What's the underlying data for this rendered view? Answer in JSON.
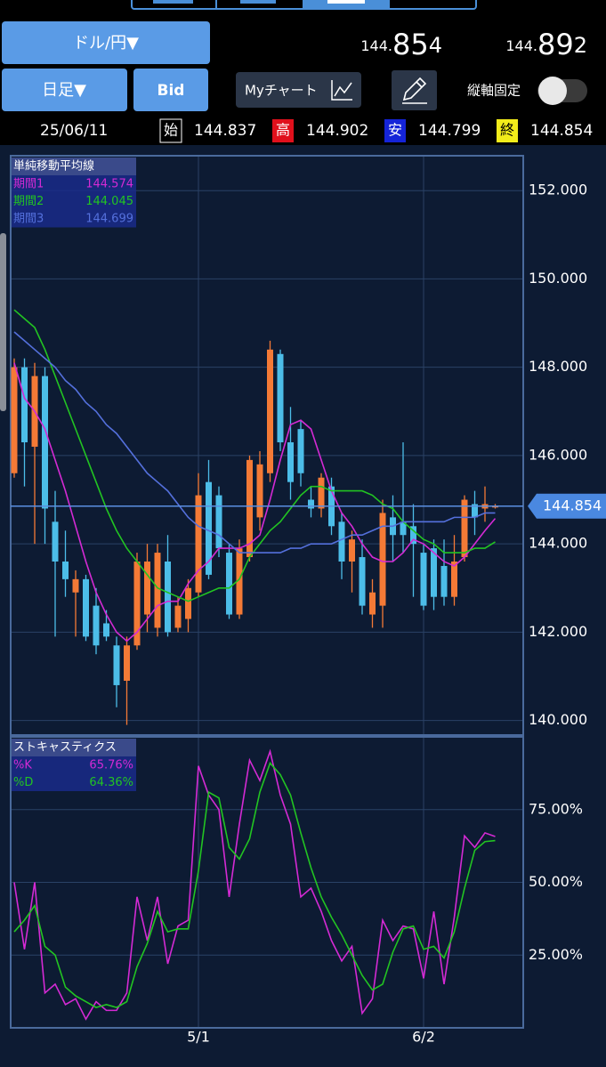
{
  "header": {
    "pair": "ドル/円▼",
    "bid_price": [
      "144.",
      "85",
      "4"
    ],
    "ask_price": [
      "144.",
      "89",
      "2"
    ],
    "timeframe": "日足▼",
    "price_type": "Bid",
    "my_chart": "Myチャート",
    "axis_lock": "縦軸固定"
  },
  "ohlc_bar": {
    "date": "25/06/11",
    "items": [
      {
        "label": "始",
        "value": "144.837"
      },
      {
        "label": "高",
        "value": "144.902"
      },
      {
        "label": "安",
        "value": "144.799"
      },
      {
        "label": "終",
        "value": "144.854"
      }
    ]
  },
  "chart_data": [
    {
      "type": "candlestick",
      "title": "単純移動平均線",
      "open": [
        145.6,
        148.0,
        146.2,
        147.8,
        144.5,
        143.6,
        142.9,
        143.2,
        142.6,
        142.2,
        141.7,
        140.9,
        141.7,
        142.4,
        142.1,
        143.6,
        142.1,
        142.3,
        142.9,
        145.4,
        145.1,
        143.8,
        142.4,
        143.7,
        144.6,
        145.6,
        148.3,
        146.3,
        146.6,
        145.0,
        144.8,
        145.3,
        144.5,
        143.6,
        143.7,
        142.4,
        142.6,
        144.6,
        144.5,
        144.4,
        143.8,
        143.9,
        143.5,
        142.8,
        143.7,
        144.9,
        144.8,
        144.837
      ],
      "high": [
        148.2,
        148.2,
        148.1,
        148.0,
        145.2,
        144.3,
        143.4,
        143.3,
        143.0,
        142.5,
        141.9,
        141.9,
        143.8,
        144.0,
        144.0,
        144.2,
        142.8,
        143.2,
        145.6,
        145.9,
        145.3,
        144.0,
        144.1,
        146.0,
        146.1,
        148.6,
        148.4,
        147.1,
        146.8,
        145.3,
        145.6,
        145.5,
        144.7,
        144.3,
        144.1,
        143.2,
        145.0,
        145.1,
        146.3,
        144.9,
        144.0,
        144.1,
        144.1,
        144.2,
        145.1,
        145.2,
        145.3,
        144.902
      ],
      "low": [
        145.5,
        145.3,
        144.0,
        144.0,
        141.9,
        142.8,
        141.9,
        141.8,
        141.5,
        141.8,
        140.3,
        139.9,
        141.6,
        142.0,
        141.9,
        141.9,
        142.0,
        142.0,
        142.8,
        143.2,
        143.7,
        142.3,
        142.3,
        143.6,
        144.3,
        145.4,
        146.1,
        145.0,
        145.3,
        144.6,
        144.6,
        144.2,
        143.2,
        142.9,
        142.4,
        142.1,
        142.1,
        143.6,
        143.8,
        142.8,
        142.5,
        142.5,
        142.6,
        142.6,
        143.6,
        144.2,
        144.5,
        144.799
      ],
      "close": [
        148.0,
        146.3,
        147.8,
        144.8,
        143.6,
        143.2,
        143.2,
        141.9,
        141.7,
        141.9,
        140.8,
        141.7,
        143.6,
        143.6,
        143.8,
        142.0,
        142.6,
        143.0,
        145.1,
        143.3,
        143.9,
        142.4,
        143.9,
        145.9,
        145.8,
        148.4,
        146.3,
        145.4,
        145.6,
        144.8,
        145.5,
        144.4,
        143.6,
        144.1,
        142.6,
        142.9,
        144.7,
        144.2,
        144.2,
        144.0,
        142.6,
        142.8,
        142.8,
        143.6,
        145.0,
        144.6,
        144.9,
        144.854
      ],
      "up_color": "#f47a36",
      "down_color": "#4cbde8",
      "series": [
        {
          "name": "期間1",
          "color": "#d42ad4",
          "values": [
            148.1,
            147.3,
            147.0,
            146.6,
            145.9,
            145.2,
            144.4,
            143.6,
            142.9,
            142.4,
            142.0,
            141.8,
            142.0,
            142.3,
            142.6,
            142.7,
            142.7,
            143.1,
            143.4,
            143.6,
            143.9,
            143.9,
            143.9,
            144.0,
            144.2,
            145.0,
            145.9,
            146.7,
            146.8,
            146.6,
            145.9,
            145.2,
            144.7,
            144.4,
            144.0,
            143.7,
            143.6,
            143.6,
            143.8,
            144.1,
            144.0,
            143.8,
            143.6,
            143.5,
            143.7,
            144.0,
            144.3,
            144.574
          ]
        },
        {
          "name": "期間2",
          "color": "#22c422",
          "values": [
            149.3,
            149.1,
            148.9,
            148.4,
            147.8,
            147.2,
            146.6,
            146.0,
            145.4,
            144.8,
            144.3,
            143.9,
            143.6,
            143.3,
            143.0,
            142.9,
            142.8,
            142.7,
            142.8,
            142.9,
            143.0,
            143.0,
            143.2,
            143.7,
            144.0,
            144.3,
            144.5,
            144.8,
            145.1,
            145.3,
            145.3,
            145.2,
            145.2,
            145.2,
            145.2,
            145.1,
            144.9,
            144.8,
            144.5,
            144.3,
            144.1,
            144.0,
            143.8,
            143.8,
            143.8,
            143.9,
            143.9,
            144.045
          ]
        },
        {
          "name": "期間3",
          "color": "#5470dc",
          "values": [
            148.8,
            148.6,
            148.4,
            148.2,
            148.0,
            147.7,
            147.5,
            147.2,
            147.0,
            146.7,
            146.5,
            146.2,
            145.9,
            145.6,
            145.4,
            145.2,
            144.9,
            144.6,
            144.4,
            144.3,
            144.2,
            144.0,
            143.8,
            143.8,
            143.8,
            143.8,
            143.8,
            143.9,
            143.9,
            144.0,
            144.0,
            144.0,
            144.1,
            144.2,
            144.2,
            144.3,
            144.4,
            144.4,
            144.5,
            144.5,
            144.5,
            144.5,
            144.5,
            144.6,
            144.6,
            144.6,
            144.7,
            144.699
          ]
        }
      ],
      "current_price": 144.854,
      "ylim": [
        139.67,
        152.79
      ],
      "yticks": [
        {
          "value": 140,
          "label": "140.000"
        },
        {
          "value": 142,
          "label": "142.000"
        },
        {
          "value": 144,
          "label": "144.000"
        },
        {
          "value": 146,
          "label": "146.000"
        },
        {
          "value": 148,
          "label": "148.000"
        },
        {
          "value": 150,
          "label": "150.000"
        },
        {
          "value": 152,
          "label": "152.000"
        }
      ],
      "grid": true
    },
    {
      "type": "line",
      "title": "ストキャスティクス",
      "categories": [
        null,
        null,
        null,
        null,
        null,
        null,
        null,
        null,
        null,
        null,
        null,
        null,
        null,
        null,
        null,
        null,
        null,
        null,
        "5/1",
        null,
        null,
        null,
        null,
        null,
        null,
        null,
        null,
        null,
        null,
        null,
        null,
        null,
        null,
        null,
        null,
        null,
        null,
        null,
        null,
        null,
        "6/2",
        null,
        null,
        null,
        null,
        null,
        null,
        null
      ],
      "series": [
        {
          "name": "%K",
          "color": "#d42ad4",
          "legend_value": "65.76%",
          "values": [
            50,
            27,
            50,
            12,
            15,
            8,
            10,
            3,
            9,
            6,
            6,
            12,
            45,
            30,
            45,
            22,
            35,
            37,
            90,
            80,
            75,
            45,
            70,
            92,
            85,
            95,
            80,
            70,
            45,
            48,
            40,
            30,
            23,
            28,
            5,
            10,
            37,
            30,
            35,
            34,
            17,
            40,
            15,
            38,
            66,
            62,
            67,
            65.76
          ]
        },
        {
          "name": "%D",
          "color": "#22c422",
          "legend_value": "64.36%",
          "values": [
            33,
            37,
            42,
            28,
            25,
            14,
            11,
            9,
            7,
            8,
            7,
            9,
            21,
            29,
            40,
            33,
            34,
            34,
            54,
            81,
            79,
            62,
            58,
            65,
            81,
            91,
            87,
            80,
            67,
            55,
            45,
            38,
            32,
            25,
            18,
            13,
            15,
            26,
            34,
            35,
            27,
            28,
            24,
            33,
            48,
            61,
            64,
            64.36
          ]
        }
      ],
      "ylim": [
        0,
        100
      ],
      "yticks": [
        {
          "value": 25,
          "label": "25.00%"
        },
        {
          "value": 50,
          "label": "50.00%"
        },
        {
          "value": 75,
          "label": "75.00%"
        }
      ],
      "grid": true
    }
  ]
}
